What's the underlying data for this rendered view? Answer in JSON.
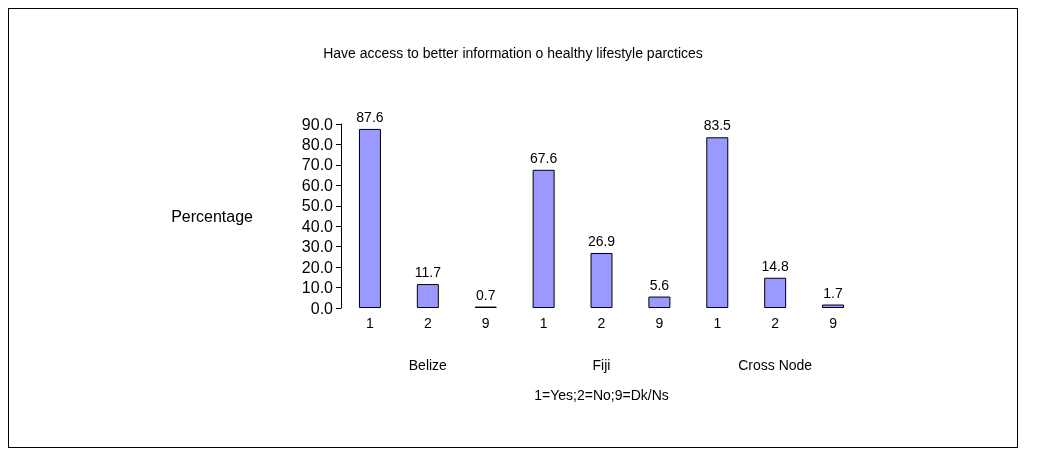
{
  "chart_data": {
    "type": "bar",
    "title": "Have access to better information o healthy lifestyle parctices",
    "xlabel": "1=Yes;2=No;9=Dk/Ns",
    "ylabel": "Percentage",
    "categories": [
      "1",
      "2",
      "9",
      "1",
      "2",
      "9",
      "1",
      "2",
      "9"
    ],
    "annotations": [
      "Belize",
      "Fiji",
      "Cross Node"
    ],
    "values": [
      87.6,
      11.7,
      0.7,
      67.6,
      26.9,
      5.6,
      83.5,
      14.8,
      1.7
    ],
    "color": "#9999ff",
    "data_labels": true,
    "grid": false,
    "ylim": [
      0,
      90
    ],
    "yticks": [
      {
        "value": 0,
        "label": "0.0"
      },
      {
        "value": 10,
        "label": "10.0"
      },
      {
        "value": 20,
        "label": "20.0"
      },
      {
        "value": 30,
        "label": "30.0"
      },
      {
        "value": 40,
        "label": "40.0"
      },
      {
        "value": 50,
        "label": "50.0"
      },
      {
        "value": 60,
        "label": "60.0"
      },
      {
        "value": 70,
        "label": "70.0"
      },
      {
        "value": 80,
        "label": "80.0"
      },
      {
        "value": 90,
        "label": "90.0"
      }
    ]
  }
}
